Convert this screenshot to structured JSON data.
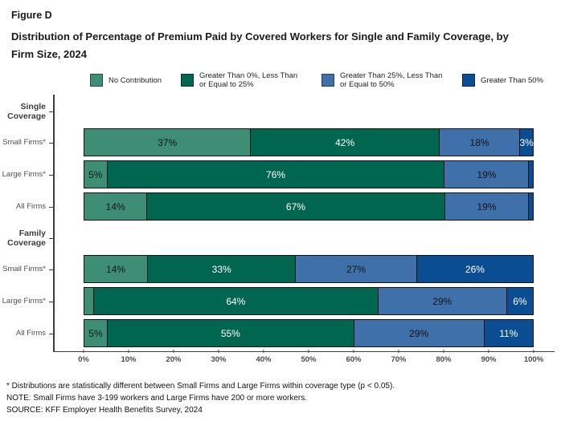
{
  "header": {
    "figure_label": "Figure D",
    "title": "Distribution of Percentage of Premium Paid by Covered Workers for Single and Family Coverage, by Firm Size, 2024"
  },
  "chart_data": {
    "type": "bar",
    "stacked": true,
    "orientation": "horizontal",
    "legend_position": "top",
    "x_axis": {
      "min": 0,
      "max": 100,
      "ticks": [
        "0%",
        "10%",
        "20%",
        "30%",
        "40%",
        "50%",
        "60%",
        "70%",
        "80%",
        "90%",
        "100%"
      ]
    },
    "series": [
      {
        "name": "No Contribution",
        "color": "#3E8E76",
        "label_color": "#141414"
      },
      {
        "name": "Greater Than 0%, Less Than or Equal to 25%",
        "color": "#00664F",
        "label_color": "#ffffff"
      },
      {
        "name": "Greater Than 25%, Less Than or Equal to 50%",
        "color": "#3F70A9",
        "label_color": "#141414"
      },
      {
        "name": "Greater Than 50%",
        "color": "#0B4D92",
        "label_color": "#ffffff"
      }
    ],
    "groups": [
      {
        "group": "Single Coverage",
        "rows": [
          {
            "category": "Small Firms*",
            "values": [
              37,
              42,
              18,
              3
            ],
            "labels": [
              "37%",
              "42%",
              "18%",
              "3%"
            ]
          },
          {
            "category": "Large Firms*",
            "values": [
              5,
              76,
              19,
              1
            ],
            "labels": [
              "5%",
              "76%",
              "19%",
              ""
            ]
          },
          {
            "category": "All Firms",
            "values": [
              14,
              67,
              19,
              1
            ],
            "labels": [
              "14%",
              "67%",
              "19%",
              ""
            ]
          }
        ]
      },
      {
        "group": "Family Coverage",
        "rows": [
          {
            "category": "Small Firms*",
            "values": [
              14,
              33,
              27,
              26
            ],
            "labels": [
              "14%",
              "33%",
              "27%",
              "26%"
            ]
          },
          {
            "category": "Large Firms*",
            "values": [
              2,
              64,
              29,
              6
            ],
            "labels": [
              "",
              "64%",
              "29%",
              "6%"
            ]
          },
          {
            "category": "All Firms",
            "values": [
              5,
              55,
              29,
              11
            ],
            "labels": [
              "5%",
              "55%",
              "29%",
              "11%"
            ]
          }
        ]
      }
    ]
  },
  "footnotes": [
    "* Distributions are statistically different between Small Firms and Large Firms within coverage type (p < 0.05).",
    "NOTE: Small Firms have 3-199 workers and Large Firms have 200 or more workers.",
    "SOURCE: KFF Employer Health Benefits Survey, 2024"
  ]
}
